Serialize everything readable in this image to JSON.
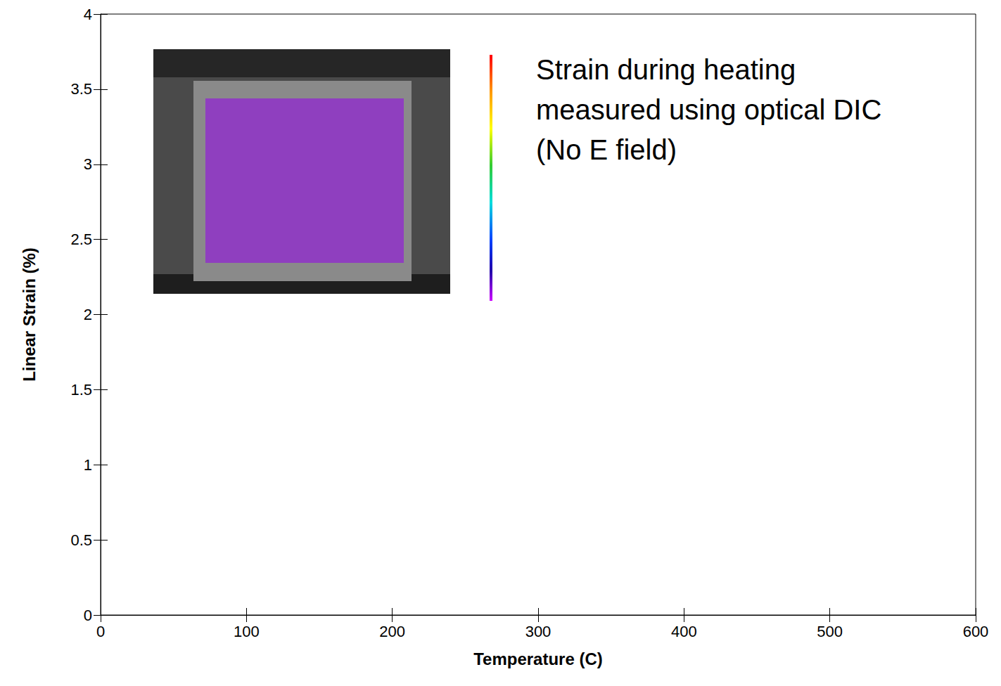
{
  "chart_data": {
    "type": "line",
    "annotation": [
      "Strain during heating",
      "measured using optical DIC",
      "(No E field)"
    ],
    "x_label": "Temperature (C)",
    "y_label": "Linear Strain (%)",
    "series": [],
    "xlim": [
      0,
      600
    ],
    "xticks": [
      0,
      100,
      200,
      300,
      400,
      500,
      600
    ],
    "ylim": [
      0,
      4
    ],
    "yticks": [
      0,
      0.5,
      1,
      1.5,
      2,
      2.5,
      3,
      3.5,
      4
    ],
    "grid": false
  }
}
